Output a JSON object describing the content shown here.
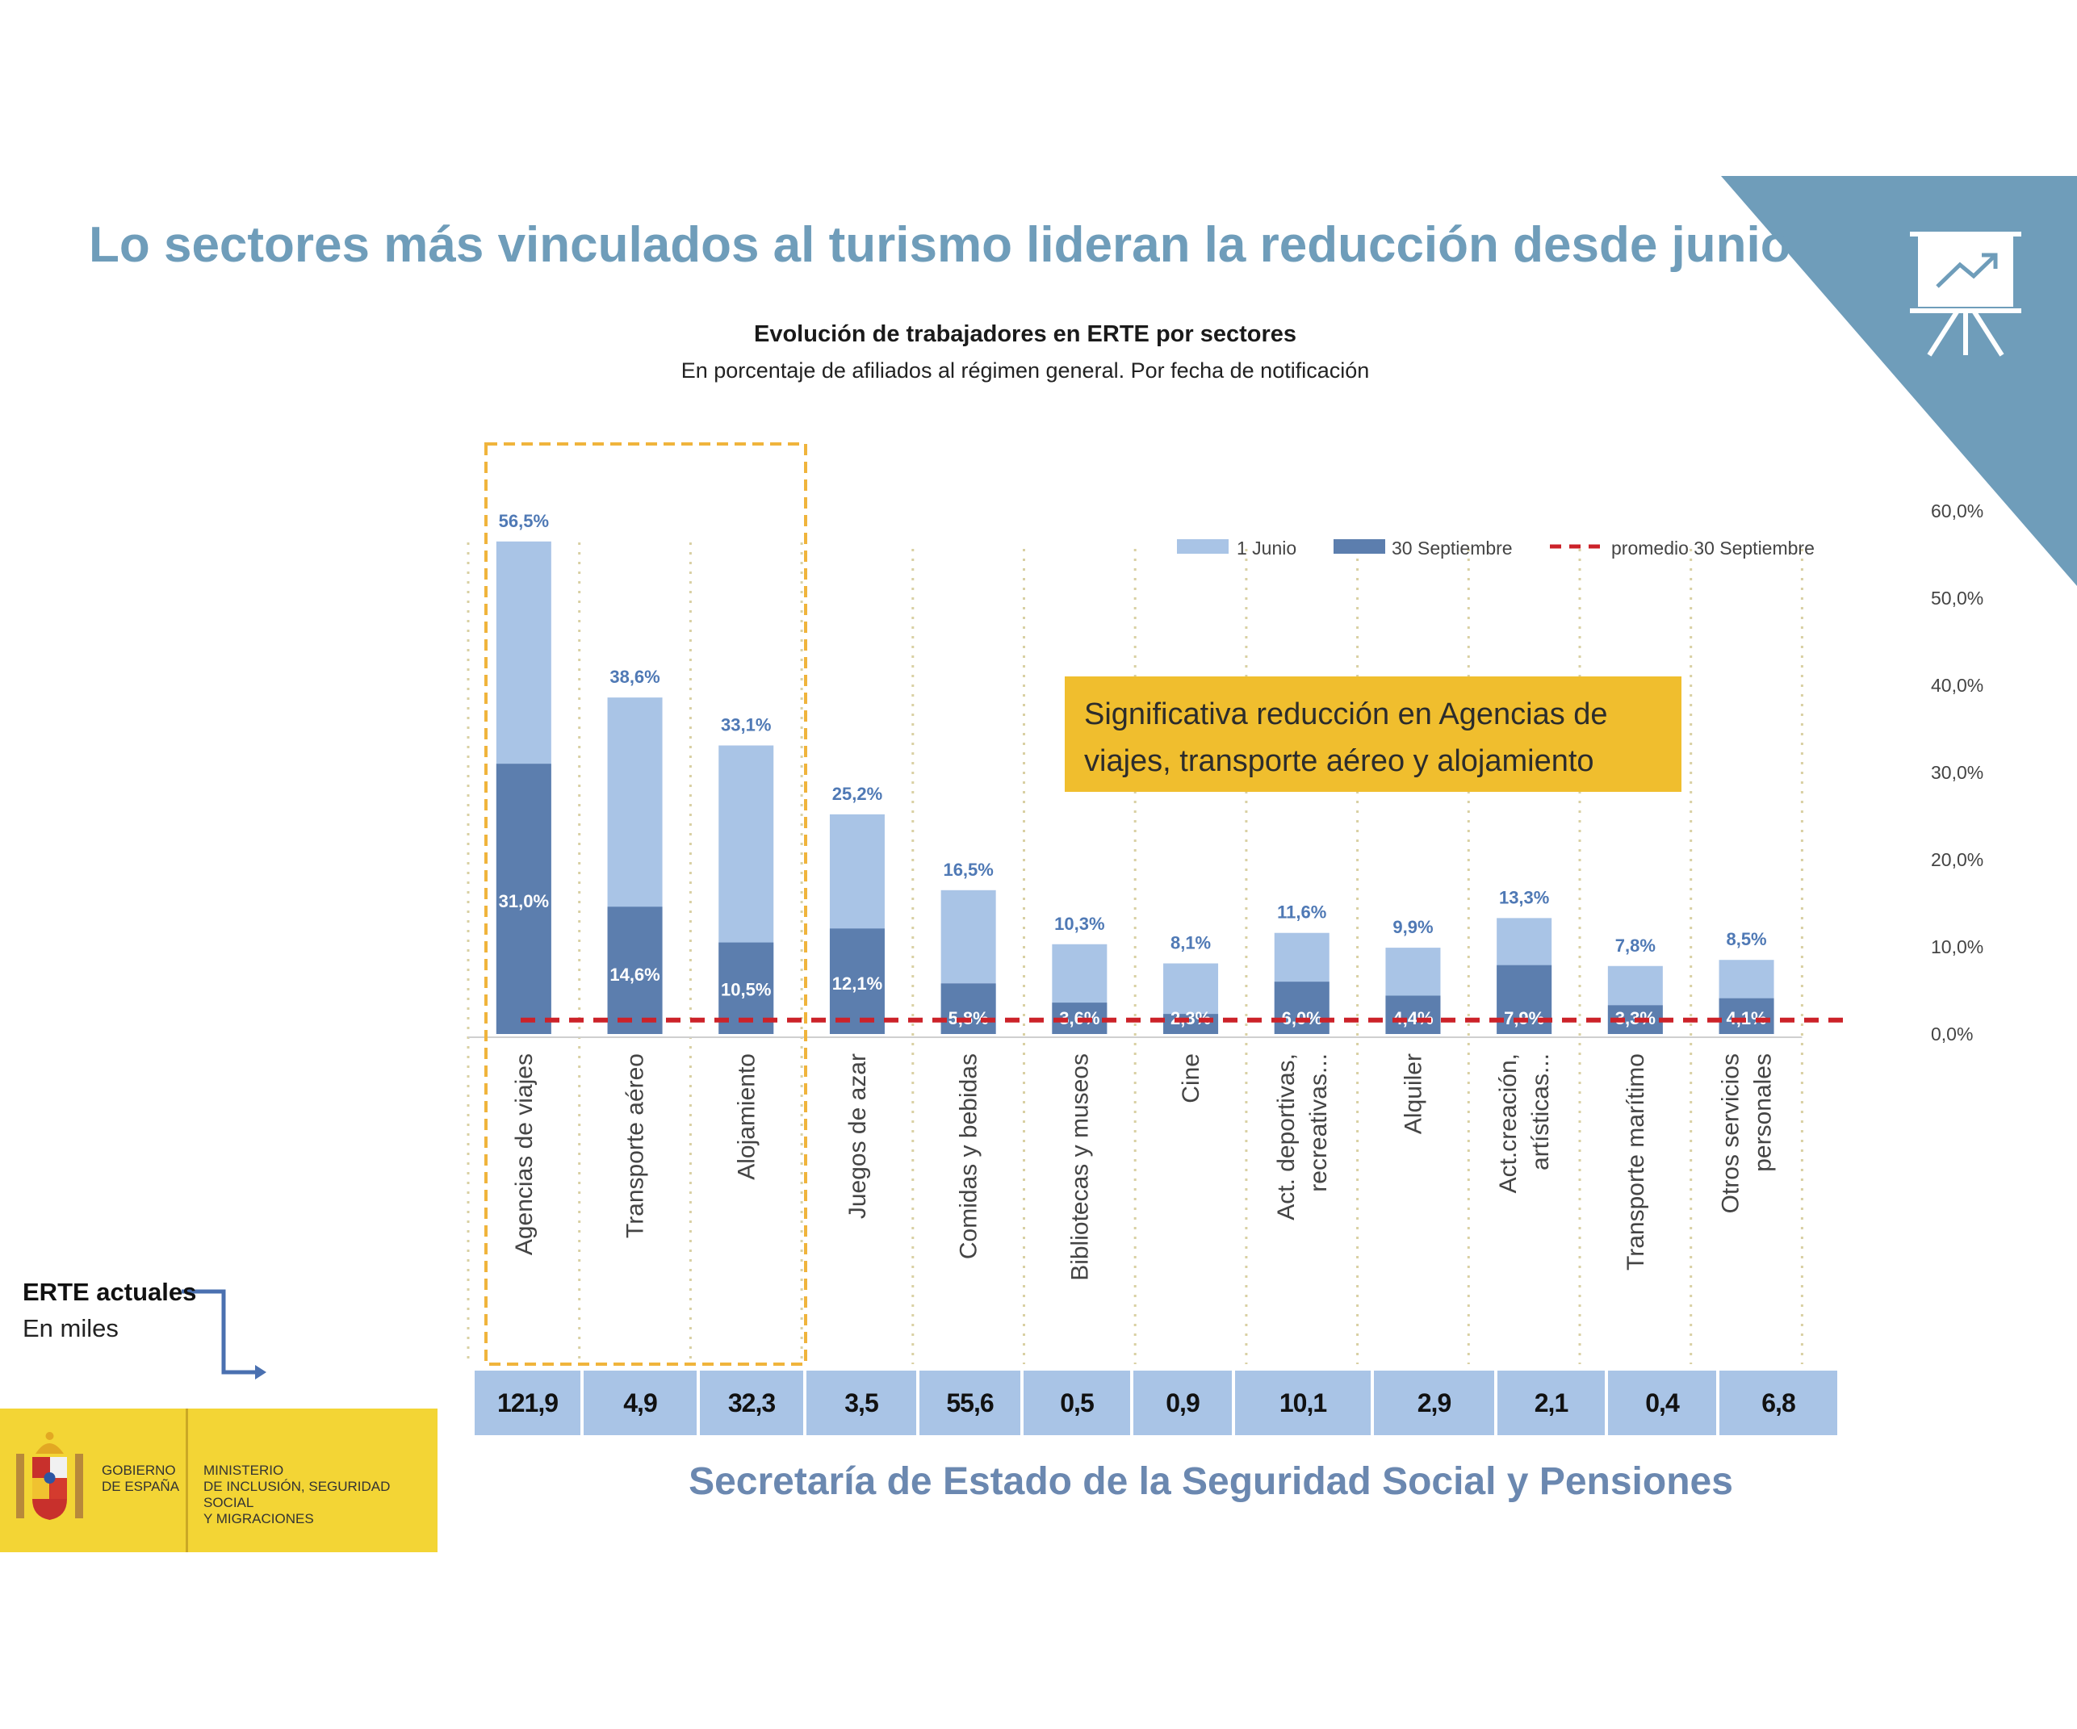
{
  "title": "Lo sectores más vinculados al turismo lideran la reducción desde junio",
  "footer": "Secretaría de Estado de la Seguridad Social y Pensiones",
  "callout": {
    "line1": "Significativa reducción en Agencias de",
    "line2": "viajes, transporte aéreo y alojamiento"
  },
  "erte_note": {
    "title": "ERTE actuales",
    "subtitle": "En miles"
  },
  "gov": {
    "name": "GOBIERNO\nDE ESPAÑA",
    "ministry": "MINISTERIO\nDE INCLUSIÓN, SEGURIDAD SOCIAL\nY MIGRACIONES"
  },
  "colors": {
    "title": "#6f9dba",
    "bar_june": "#a9c4e6",
    "bar_sept": "#5c7eae",
    "average_line": "#cc2229",
    "callout_bg": "#f0be2e",
    "erte_cells": "#a9c4e6",
    "highlight_box": "#f0b43c",
    "corner_triangle": "#6f9dba"
  },
  "icons": {
    "corner": "presentation-chart-icon",
    "logo": "spanish-coat-of-arms-icon"
  },
  "chart_data": {
    "type": "bar",
    "title": "Evolución de trabajadores en ERTE por sectores",
    "subtitle": "En porcentaje de afiliados al régimen general. Por fecha de notificación",
    "categories": [
      [
        "Agencias de viajes"
      ],
      [
        "Transporte aéreo"
      ],
      [
        "Alojamiento"
      ],
      [
        "Juegos de azar"
      ],
      [
        "Comidas y bebidas"
      ],
      [
        "Bibliotecas y museos"
      ],
      [
        "Cine"
      ],
      [
        "Act. deportivas,",
        "recreativas..."
      ],
      [
        "Alquiler"
      ],
      [
        "Act.creación,",
        "artísticas..."
      ],
      [
        "Transporte marítimo"
      ],
      [
        "Otros servicios",
        "personales"
      ]
    ],
    "series": [
      {
        "name": "1 Junio",
        "values": [
          56.5,
          38.6,
          33.1,
          25.2,
          16.5,
          10.3,
          8.1,
          11.6,
          9.9,
          13.3,
          7.8,
          8.5
        ],
        "labels": [
          "56,5%",
          "38,6%",
          "33,1%",
          "25,2%",
          "16,5%",
          "10,3%",
          "8,1%",
          "11,6%",
          "9,9%",
          "13,3%",
          "7,8%",
          "8,5%"
        ]
      },
      {
        "name": "30 Septiembre",
        "values": [
          31.0,
          14.6,
          10.5,
          12.1,
          5.8,
          3.6,
          2.3,
          6.0,
          4.4,
          7.9,
          3.3,
          4.1
        ],
        "labels": [
          "31,0%",
          "14,6%",
          "10,5%",
          "12,1%",
          "5,8%",
          "3,6%",
          "2,3%",
          "6,0%",
          "4,4%",
          "7,9%",
          "3,3%",
          "4,1%"
        ]
      }
    ],
    "reference_line": {
      "name": "promedio 30 Septiembre",
      "value": 1.6
    },
    "y_axis": {
      "position": "right",
      "range": [
        0,
        60
      ],
      "ticks": [
        0,
        10,
        20,
        30,
        40,
        50,
        60
      ],
      "tick_labels": [
        "0,0%",
        "10,0%",
        "20,0%",
        "30,0%",
        "40,0%",
        "50,0%",
        "60,0%"
      ]
    },
    "legend": {
      "position": "top-right"
    },
    "highlighted_categories": [
      "Agencias de viajes",
      "Transporte aéreo",
      "Alojamiento"
    ],
    "erte_actuales": [
      "121,9",
      "4,9",
      "32,3",
      "3,5",
      "55,6",
      "0,5",
      "0,9",
      "10,1",
      "2,9",
      "2,1",
      "0,4",
      "6,8"
    ]
  }
}
